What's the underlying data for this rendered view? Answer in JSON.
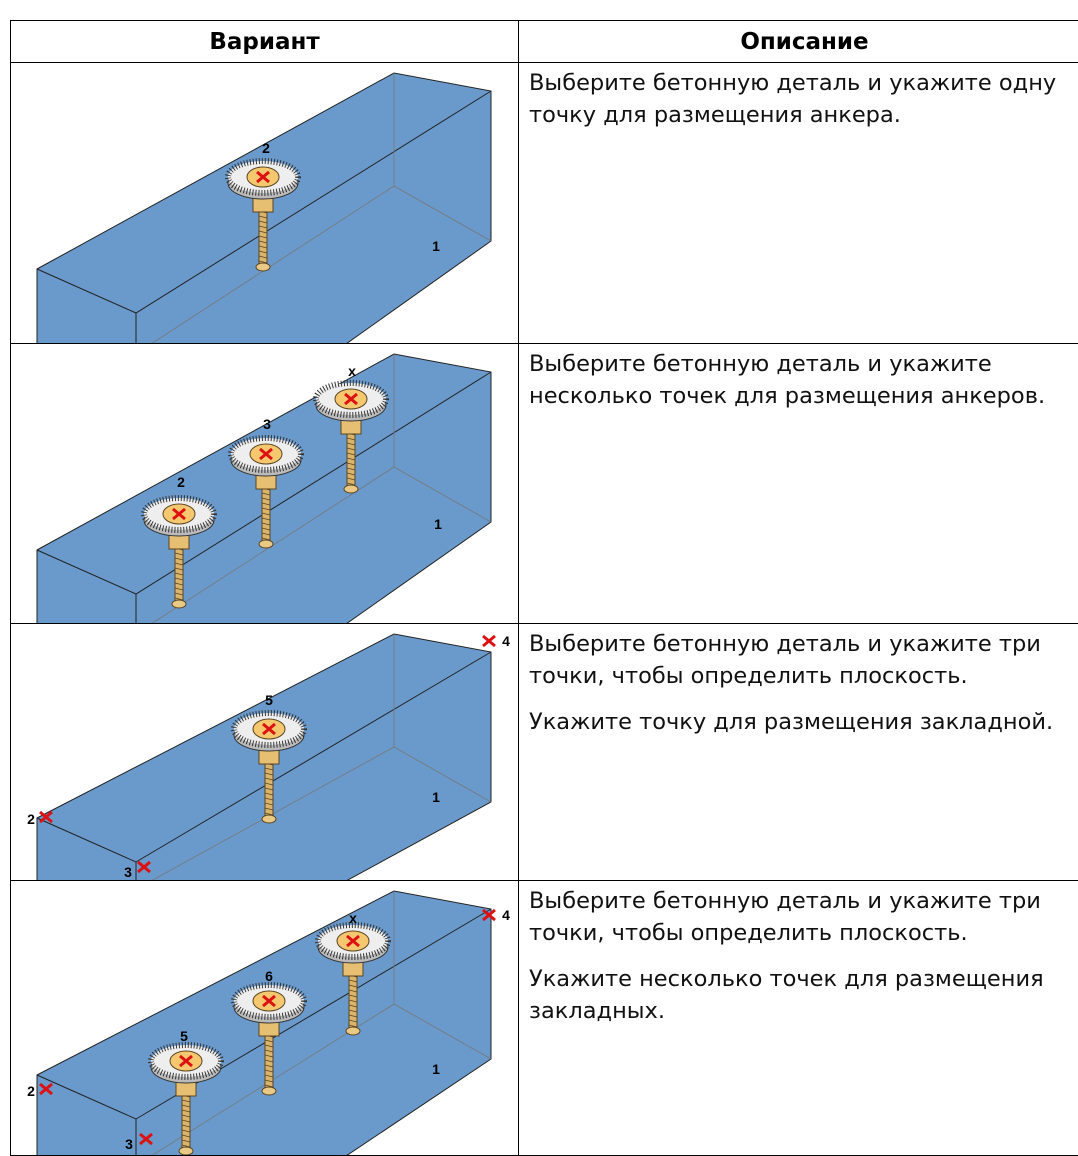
{
  "table": {
    "header": [
      "Вариант",
      "Описание"
    ],
    "rows": [
      {
        "figure_labels": [
          "2",
          "1"
        ],
        "description": [
          "Выберите бетонную деталь и укажите одну точку для размещения анкера."
        ]
      },
      {
        "figure_labels": [
          "2",
          "3",
          "x",
          "1"
        ],
        "description": [
          "Выберите бетонную деталь и укажите несколько точек для размещения анкеров."
        ]
      },
      {
        "figure_labels": [
          "4",
          "2",
          "3",
          "5",
          "1"
        ],
        "description": [
          "Выберите бетонную деталь и укажите три точки, чтобы определить плоскость.",
          "Укажите точку для размещения закладной."
        ]
      },
      {
        "figure_labels": [
          "x",
          "6",
          "5",
          "4",
          "2",
          "3",
          "1"
        ],
        "description": [
          "Выберите бетонную деталь и укажите три точки, чтобы определить плоскость.",
          "Укажите несколько точек для размещения закладных."
        ]
      }
    ]
  }
}
